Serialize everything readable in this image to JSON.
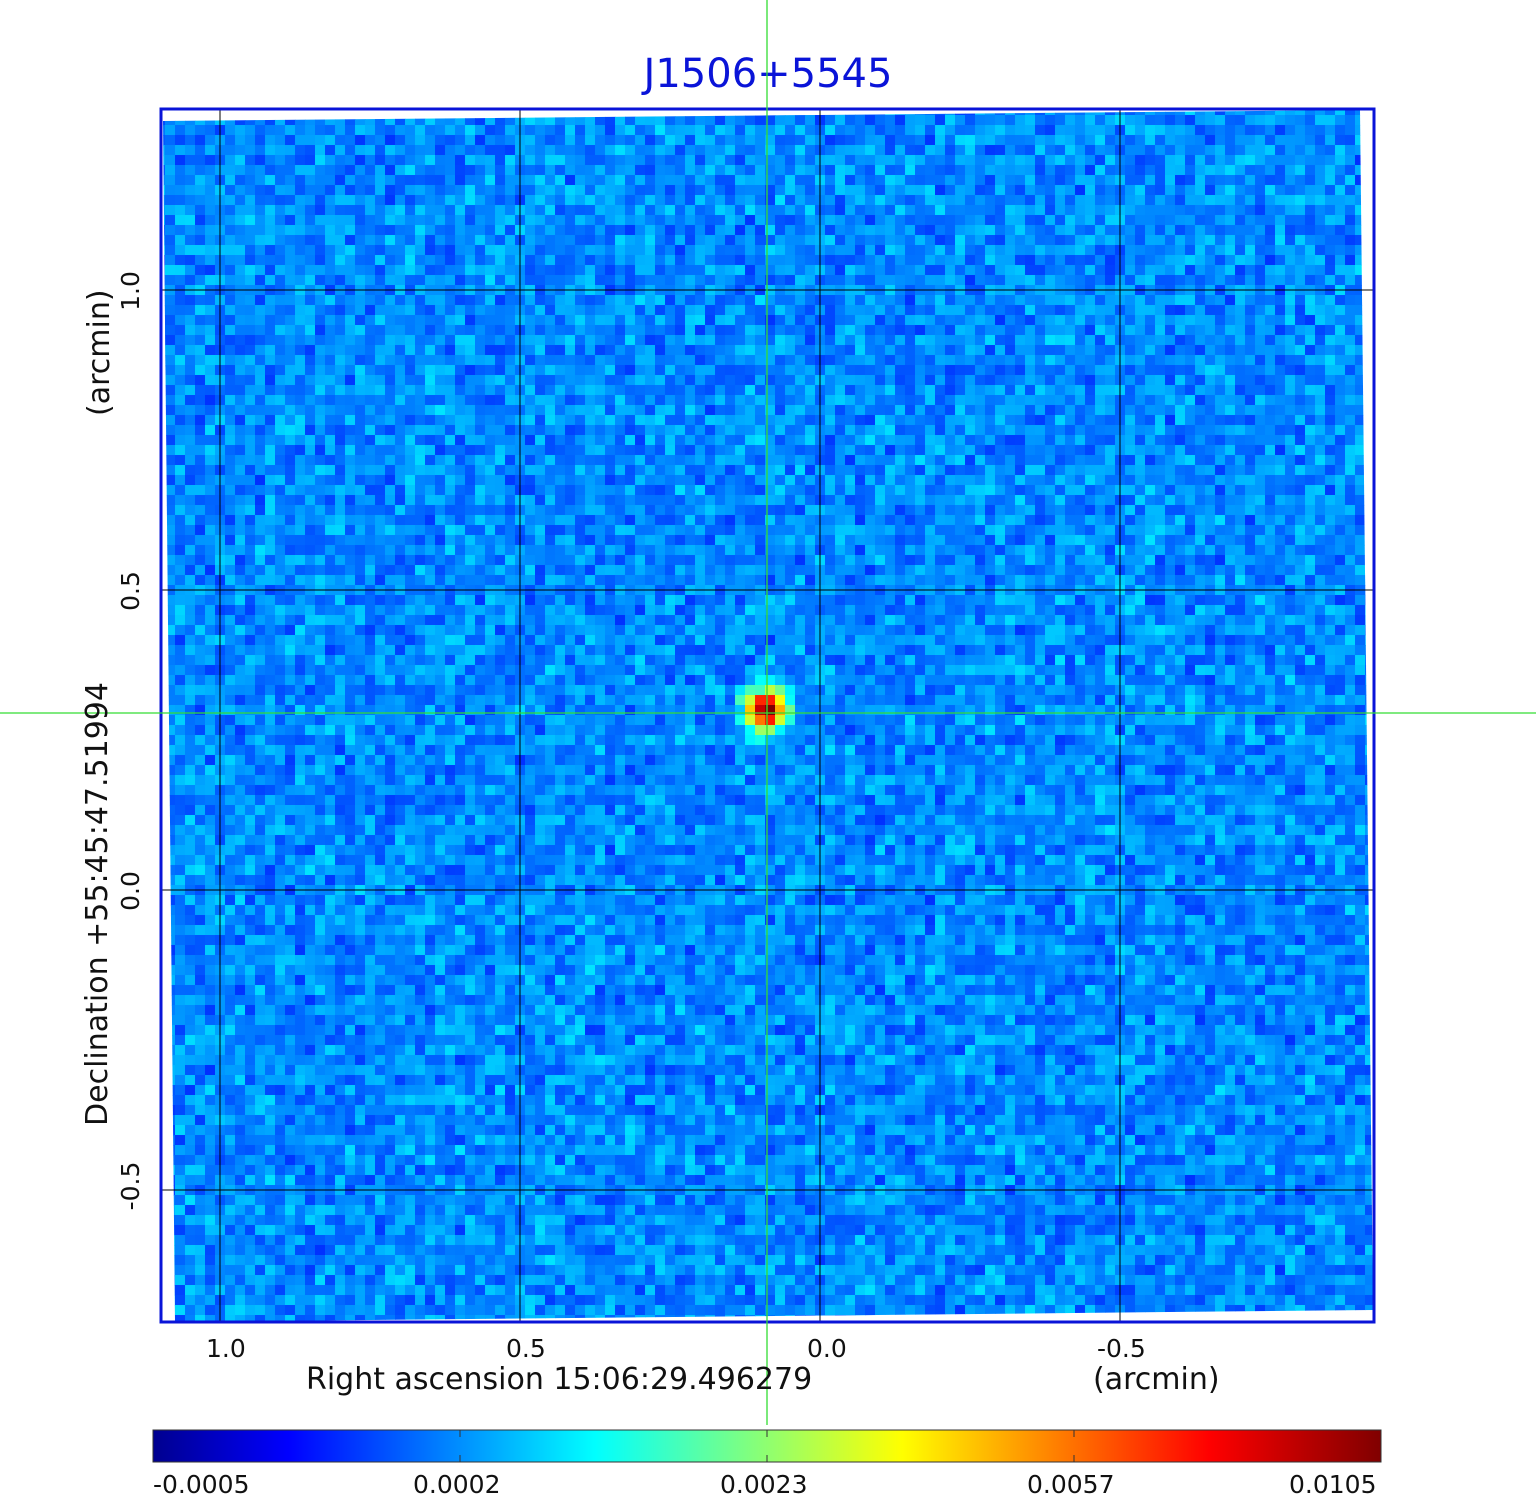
{
  "figure": {
    "title": "J1506+5545",
    "xaxis": {
      "label": "Right ascension  15:06:29.496279",
      "unit": "(arcmin)",
      "ticks": [
        "1.0",
        "0.5",
        "0.0",
        "-0.5"
      ],
      "tick_values": [
        1.0,
        0.5,
        0.0,
        -0.5
      ]
    },
    "yaxis": {
      "label": "Declination  +55:45:47.51994",
      "unit": "(arcmin)",
      "ticks": [
        "1.0",
        "0.5",
        "0.0",
        "-0.5"
      ],
      "tick_values": [
        1.0,
        0.5,
        0.0,
        -0.5
      ]
    },
    "colorbar": {
      "ticks": [
        "-0.0005",
        "0.0002",
        "0.0023",
        "0.0057",
        "0.0105"
      ],
      "colormap": "jet"
    },
    "source": {
      "ra_offset_arcmin": 0.09,
      "dec_offset_arcmin": 0.3
    },
    "colors": {
      "frame": "#0a14d8",
      "crosshair": "#33dd33",
      "grid": "#000000"
    }
  }
}
